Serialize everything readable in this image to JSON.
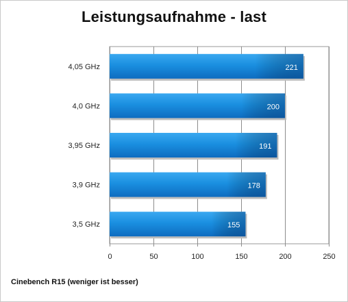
{
  "chart_data": {
    "type": "bar",
    "orientation": "horizontal",
    "title": "Leistungsaufnahme - last",
    "categories": [
      "4,05 GHz",
      "4,0 GHz",
      "3,95 GHz",
      "3,9 GHz",
      "3,5 GHz"
    ],
    "values": [
      221,
      200,
      191,
      178,
      155
    ],
    "value_labels": [
      "221",
      "200",
      "191",
      "178",
      "155"
    ],
    "xlim": [
      0,
      250
    ],
    "xticks": [
      0,
      50,
      100,
      150,
      200,
      250
    ],
    "xtick_labels": [
      "0",
      "50",
      "100",
      "150",
      "200",
      "250"
    ],
    "xlabel": "",
    "ylabel": "",
    "grid": "vertical",
    "legend": "none",
    "bar_color": "#1a8fe0",
    "bar_color_dark": "#0e5fa8",
    "footnote": "Cinebench R15 (weniger ist besser)"
  }
}
